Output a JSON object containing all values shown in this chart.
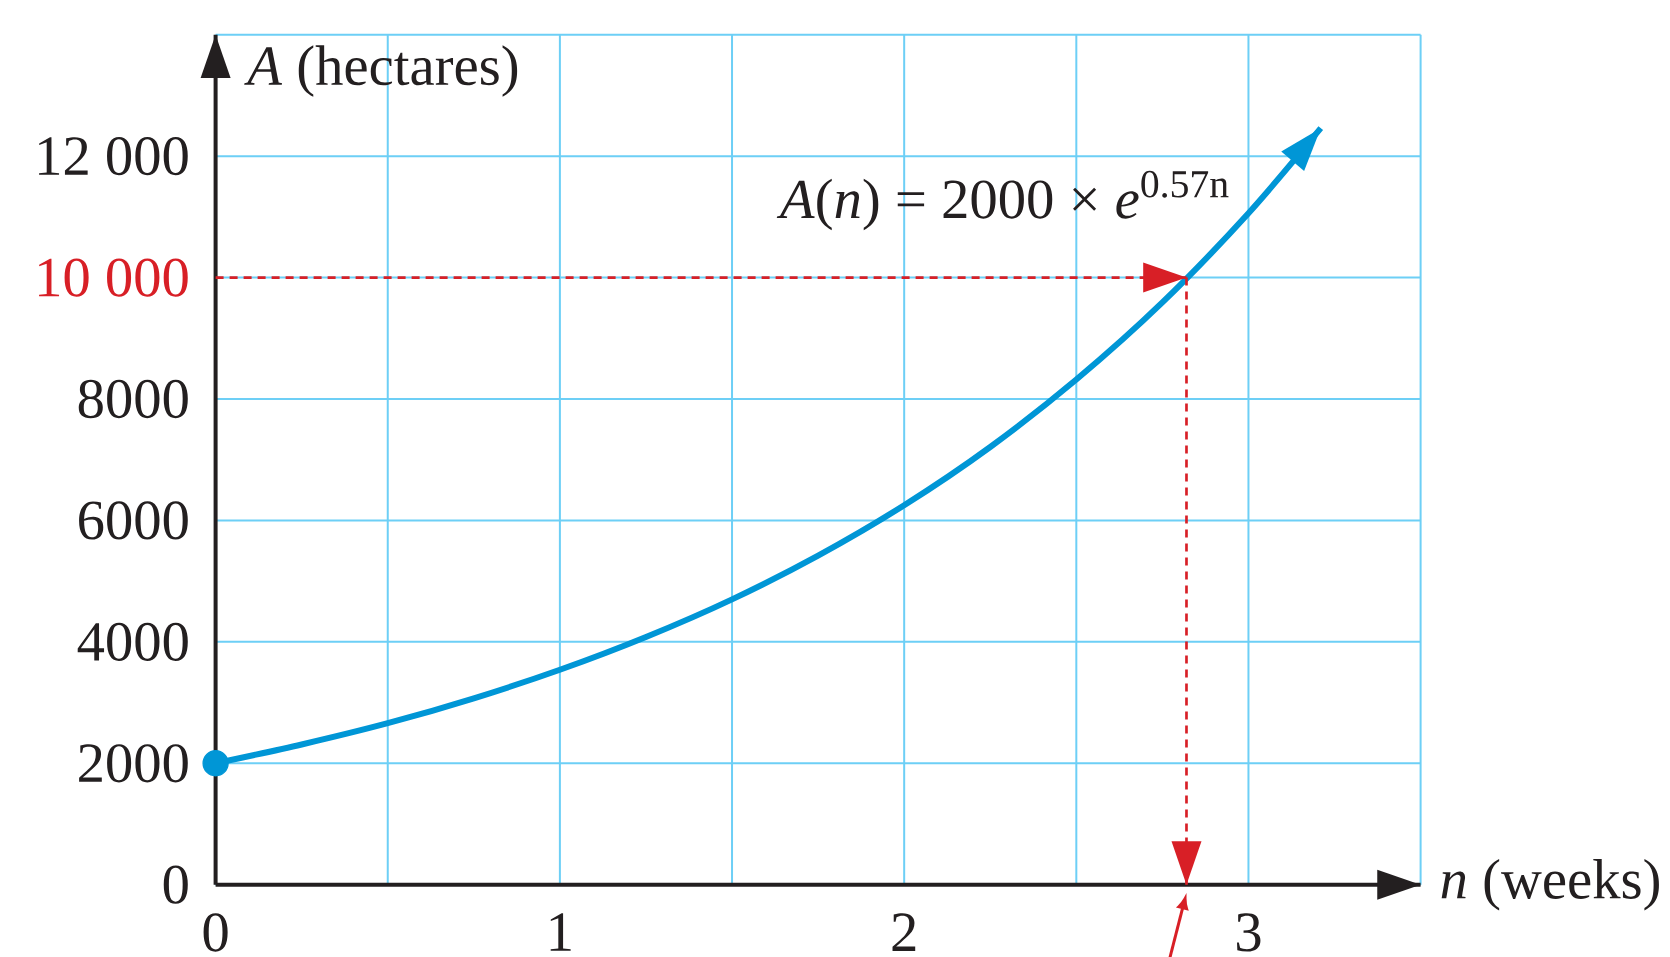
{
  "chart_data": {
    "type": "line",
    "xlabel": "*n* (weeks)",
    "ylabel": "*A* (hectares)",
    "annotations": [
      "*A*(*n*) = 2000 × *e*$^{0.57n}$"
    ],
    "xlim": [
      0,
      3.5
    ],
    "ylim": [
      0,
      14000
    ],
    "xticks": [
      0,
      {
        "value": 0.5,
        "label": null
      },
      1,
      {
        "value": 1.5,
        "label": null
      },
      2,
      {
        "value": 2.5,
        "label": null
      },
      3,
      {
        "value": 3.5,
        "label": null
      }
    ],
    "yticks": [
      0,
      2000,
      4000,
      6000,
      8000,
      {
        "value": 10000,
        "label": "10 000"
      },
      {
        "value": 12000,
        "label": "12 000"
      },
      {
        "value": 14000,
        "label": null
      }
    ],
    "grid": true,
    "series": [
      {
        "color": "#0096d6",
        "x": [
          0,
          0.25,
          0.5,
          0.75,
          1,
          1.25,
          1.5,
          1.75,
          2,
          2.25,
          2.5,
          2.75,
          3,
          3.21
        ],
        "values": [
          2000,
          2310,
          2660,
          3070,
          3540,
          4080,
          4700,
          5420,
          6250,
          7210,
          8320,
          9590,
          11060,
          12460
        ],
        "marker": "none",
        "line_style": "solid"
      },
      {
        "type": "scatter",
        "color": "#0096d6",
        "x": [
          0
        ],
        "values": [
          2000
        ],
        "marker": "circle"
      }
    ],
    "ref_lines": [
      {
        "axis": "y",
        "value": 10000,
        "color": "#d81f26",
        "line_style": "dashed"
      },
      {
        "axis": "x",
        "value": 2.82,
        "color": "#d81f26",
        "line_style": "dashed"
      }
    ]
  }
}
